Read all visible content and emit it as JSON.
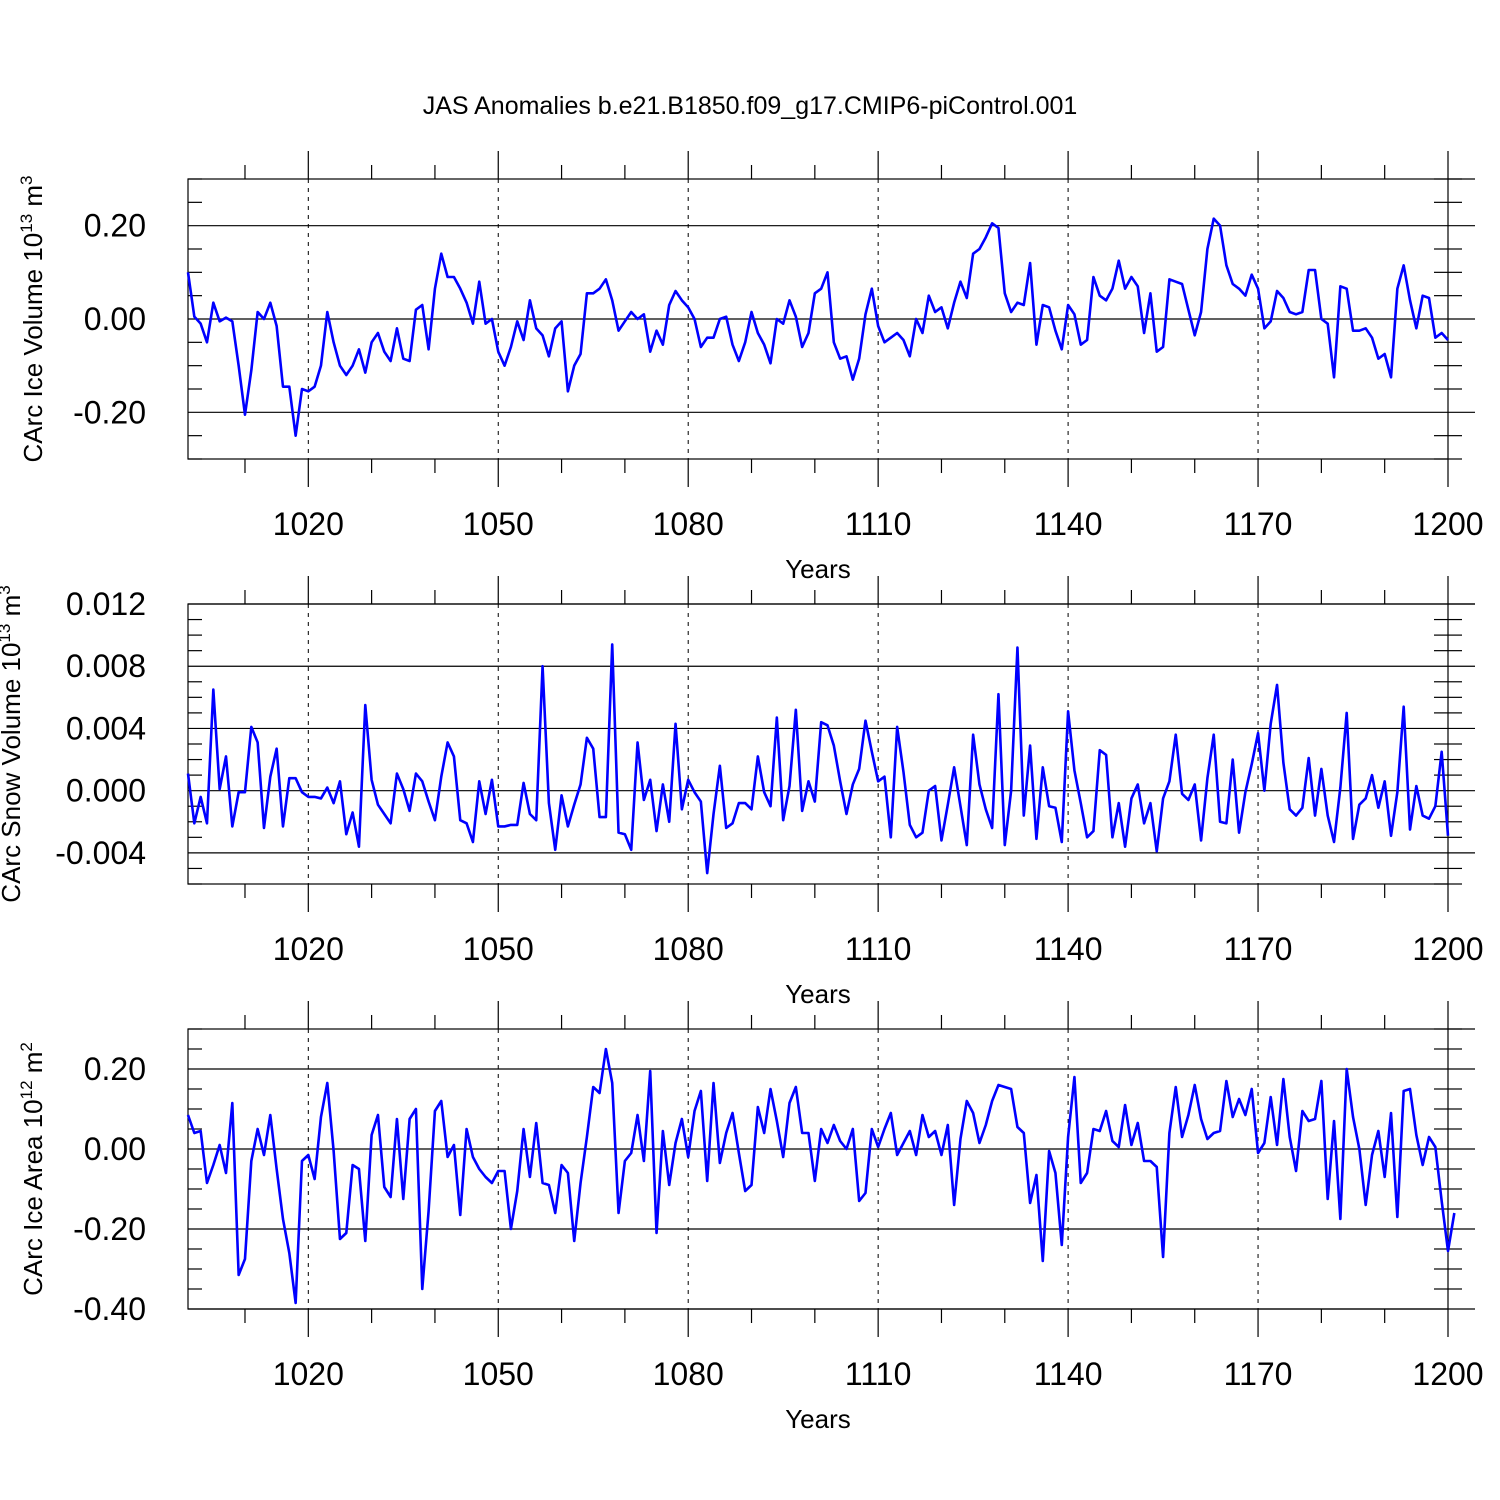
{
  "title": "JAS Anomalies b.e21.B1850.f09_g17.CMIP6-piControl.001",
  "colors": {
    "line": "#0000ff",
    "axis": "#000000",
    "background": "#ffffff"
  },
  "chart_data": [
    {
      "type": "line",
      "name": "ice-volume",
      "ylabel": "CArc Ice Volume 10",
      "ylabel_exp": "13",
      "ylabel_unit": " m",
      "ylabel_unit_exp": "3",
      "xlabel": "Years",
      "xlim": [
        1001,
        1200
      ],
      "ylim": [
        -0.3,
        0.3
      ],
      "xticks": [
        1020,
        1050,
        1080,
        1110,
        1140,
        1170,
        1200
      ],
      "xtick_labels": [
        "1020",
        "1050",
        "1080",
        "1110",
        "1140",
        "1170",
        "1200"
      ],
      "yticks": [
        -0.2,
        0.0,
        0.2
      ],
      "ytick_labels": [
        "-0.20",
        "0.00",
        "0.20"
      ],
      "y_minor_step": 0.05,
      "x_minor_step": 10,
      "x_start": 1001,
      "values": [
        0.1,
        0.005,
        -0.01,
        -0.05,
        0.035,
        -0.005,
        0.003,
        -0.005,
        -0.1,
        -0.205,
        -0.11,
        0.015,
        0.0,
        0.035,
        -0.015,
        -0.145,
        -0.145,
        -0.25,
        -0.15,
        -0.155,
        -0.145,
        -0.1,
        0.015,
        -0.05,
        -0.1,
        -0.12,
        -0.1,
        -0.065,
        -0.115,
        -0.05,
        -0.03,
        -0.07,
        -0.09,
        -0.02,
        -0.085,
        -0.09,
        0.02,
        0.03,
        -0.065,
        0.065,
        0.14,
        0.09,
        0.09,
        0.065,
        0.035,
        -0.01,
        0.08,
        -0.01,
        0.0,
        -0.07,
        -0.1,
        -0.06,
        -0.005,
        -0.045,
        0.04,
        -0.02,
        -0.035,
        -0.08,
        -0.02,
        -0.005,
        -0.155,
        -0.1,
        -0.075,
        0.055,
        0.055,
        0.065,
        0.085,
        0.04,
        -0.025,
        -0.005,
        0.015,
        0.0,
        0.01,
        -0.07,
        -0.025,
        -0.055,
        0.03,
        0.06,
        0.04,
        0.025,
        0.0,
        -0.06,
        -0.04,
        -0.04,
        0.0,
        0.005,
        -0.055,
        -0.09,
        -0.05,
        0.015,
        -0.03,
        -0.055,
        -0.095,
        0.0,
        -0.01,
        0.04,
        0.005,
        -0.06,
        -0.03,
        0.055,
        0.065,
        0.1,
        -0.05,
        -0.085,
        -0.08,
        -0.13,
        -0.085,
        0.01,
        0.065,
        -0.015,
        -0.05,
        -0.04,
        -0.03,
        -0.045,
        -0.08,
        0.0,
        -0.03,
        0.05,
        0.015,
        0.025,
        -0.02,
        0.035,
        0.08,
        0.045,
        0.14,
        0.15,
        0.175,
        0.205,
        0.195,
        0.055,
        0.015,
        0.035,
        0.03,
        0.12,
        -0.055,
        0.03,
        0.025,
        -0.025,
        -0.065,
        0.03,
        0.01,
        -0.055,
        -0.045,
        0.09,
        0.05,
        0.04,
        0.065,
        0.125,
        0.065,
        0.09,
        0.07,
        -0.03,
        0.055,
        -0.07,
        -0.06,
        0.085,
        0.08,
        0.075,
        0.02,
        -0.035,
        0.015,
        0.15,
        0.215,
        0.2,
        0.115,
        0.075,
        0.065,
        0.05,
        0.095,
        0.065,
        -0.02,
        -0.005,
        0.06,
        0.045,
        0.015,
        0.01,
        0.015,
        0.105,
        0.105,
        0.0,
        -0.01,
        -0.125,
        0.07,
        0.065,
        -0.025,
        -0.025,
        -0.02,
        -0.04,
        -0.085,
        -0.075,
        -0.125,
        0.065,
        0.115,
        0.04,
        -0.02,
        0.05,
        0.045,
        -0.04,
        -0.03,
        -0.045
      ]
    },
    {
      "type": "line",
      "name": "snow-volume",
      "ylabel": "CArc Snow Volume 10",
      "ylabel_exp": "13",
      "ylabel_unit": " m",
      "ylabel_unit_exp": "3",
      "xlabel": "Years",
      "xlim": [
        1001,
        1200
      ],
      "ylim": [
        -0.006,
        0.012
      ],
      "xticks": [
        1020,
        1050,
        1080,
        1110,
        1140,
        1170,
        1200
      ],
      "xtick_labels": [
        "1020",
        "1050",
        "1080",
        "1110",
        "1140",
        "1170",
        "1200"
      ],
      "yticks": [
        -0.004,
        0.0,
        0.004,
        0.008,
        0.012
      ],
      "ytick_labels": [
        "-0.004",
        "0.000",
        "0.004",
        "0.008",
        "0.012"
      ],
      "y_minor_step": 0.001,
      "x_minor_step": 10,
      "x_start": 1001,
      "values": [
        0.0011,
        -0.0021,
        -0.0004,
        -0.0021,
        0.0065,
        0.0001,
        0.0022,
        -0.0023,
        -0.0001,
        -0.0001,
        0.0041,
        0.0031,
        -0.0024,
        0.0009,
        0.0027,
        -0.0023,
        0.0008,
        0.0008,
        -0.0001,
        -0.0004,
        -0.0004,
        -0.0005,
        0.0002,
        -0.0008,
        0.0006,
        -0.0028,
        -0.0014,
        -0.0036,
        0.0055,
        0.0007,
        -0.0009,
        -0.0015,
        -0.0021,
        0.0011,
        0.0001,
        -0.0013,
        0.0011,
        0.0006,
        -0.0007,
        -0.0019,
        0.0009,
        0.0031,
        0.0022,
        -0.0019,
        -0.0021,
        -0.0033,
        0.0006,
        -0.0015,
        0.0007,
        -0.0023,
        -0.0023,
        -0.0022,
        -0.0022,
        0.0005,
        -0.0015,
        -0.0019,
        0.008,
        -0.0008,
        -0.0038,
        -0.0003,
        -0.0023,
        -0.0009,
        0.0004,
        0.0034,
        0.0027,
        -0.0017,
        -0.0017,
        0.0094,
        -0.0027,
        -0.0028,
        -0.0038,
        0.0031,
        -0.0006,
        0.0007,
        -0.0026,
        0.0004,
        -0.002,
        0.0043,
        -0.0012,
        0.0007,
        -0.0001,
        -0.0007,
        -0.0053,
        -0.0015,
        0.0016,
        -0.0024,
        -0.0021,
        -0.0008,
        -0.0008,
        -0.0012,
        0.0022,
        -0.0001,
        -0.001,
        0.0047,
        -0.0019,
        0.0003,
        0.0052,
        -0.0013,
        0.0006,
        -0.0007,
        0.0044,
        0.0042,
        0.0029,
        0.0006,
        -0.0015,
        0.0004,
        0.0014,
        0.0045,
        0.0025,
        0.0006,
        0.0009,
        -0.003,
        0.0041,
        0.0012,
        -0.0022,
        -0.003,
        -0.0027,
        0.0,
        0.0003,
        -0.0032,
        -0.0009,
        0.0015,
        -0.001,
        -0.0035,
        0.0036,
        0.0004,
        -0.0012,
        -0.0024,
        0.0062,
        -0.0035,
        0.0,
        0.0092,
        -0.0016,
        0.0029,
        -0.0031,
        0.0015,
        -0.001,
        -0.0011,
        -0.0033,
        0.0051,
        0.0013,
        -0.0008,
        -0.003,
        -0.0026,
        0.0026,
        0.0023,
        -0.003,
        -0.0008,
        -0.0036,
        -0.0005,
        0.0004,
        -0.0021,
        -0.0008,
        -0.0039,
        -0.0005,
        0.0006,
        0.0036,
        -0.0002,
        -0.0006,
        0.0004,
        -0.0032,
        0.0008,
        0.0036,
        -0.002,
        -0.0021,
        0.002,
        -0.0027,
        -0.0001,
        0.0017,
        0.0037,
        0.0,
        0.0043,
        0.0068,
        0.0018,
        -0.0012,
        -0.0016,
        -0.0011,
        0.0021,
        -0.0016,
        0.0014,
        -0.0016,
        -0.0033,
        0.0002,
        0.005,
        -0.0031,
        -0.0009,
        -0.0005,
        0.001,
        -0.0011,
        0.0006,
        -0.0029,
        -0.0001,
        0.0054,
        -0.0025,
        0.0003,
        -0.0016,
        -0.0018,
        -0.001,
        0.0025,
        -0.0029
      ]
    },
    {
      "type": "line",
      "name": "ice-area",
      "ylabel": "CArc Ice Area 10",
      "ylabel_exp": "12",
      "ylabel_unit": " m",
      "ylabel_unit_exp": "2",
      "xlabel": "Years",
      "xlim": [
        1001,
        1200
      ],
      "ylim": [
        -0.4,
        0.3
      ],
      "xticks": [
        1020,
        1050,
        1080,
        1110,
        1140,
        1170,
        1200
      ],
      "xtick_labels": [
        "1020",
        "1050",
        "1080",
        "1110",
        "1140",
        "1170",
        "1200"
      ],
      "yticks": [
        -0.4,
        -0.2,
        0.0,
        0.2
      ],
      "ytick_labels": [
        "-0.40",
        "-0.20",
        "0.00",
        "0.20"
      ],
      "y_minor_step": 0.05,
      "x_minor_step": 10,
      "x_start": 1001,
      "values": [
        0.085,
        0.04,
        0.045,
        -0.085,
        -0.04,
        0.01,
        -0.06,
        0.115,
        -0.315,
        -0.275,
        -0.03,
        0.05,
        -0.015,
        0.085,
        -0.05,
        -0.175,
        -0.26,
        -0.385,
        -0.03,
        -0.015,
        -0.075,
        0.08,
        0.165,
        -0.005,
        -0.225,
        -0.21,
        -0.04,
        -0.05,
        -0.23,
        0.035,
        0.085,
        -0.095,
        -0.12,
        0.075,
        -0.125,
        0.075,
        0.1,
        -0.35,
        -0.155,
        0.095,
        0.12,
        -0.02,
        0.01,
        -0.165,
        0.05,
        -0.02,
        -0.05,
        -0.07,
        -0.085,
        -0.055,
        -0.055,
        -0.2,
        -0.105,
        0.05,
        -0.07,
        0.065,
        -0.085,
        -0.09,
        -0.16,
        -0.04,
        -0.06,
        -0.23,
        -0.085,
        0.03,
        0.155,
        0.14,
        0.25,
        0.165,
        -0.16,
        -0.03,
        -0.01,
        0.085,
        -0.03,
        0.195,
        -0.21,
        0.045,
        -0.09,
        0.015,
        0.075,
        -0.02,
        0.095,
        0.145,
        -0.08,
        0.165,
        -0.035,
        0.04,
        0.09,
        -0.01,
        -0.105,
        -0.09,
        0.105,
        0.04,
        0.15,
        0.07,
        -0.02,
        0.115,
        0.155,
        0.04,
        0.04,
        -0.08,
        0.05,
        0.015,
        0.06,
        0.02,
        0.0,
        0.05,
        -0.13,
        -0.11,
        0.05,
        0.005,
        0.05,
        0.09,
        -0.015,
        0.015,
        0.045,
        -0.015,
        0.085,
        0.03,
        0.045,
        -0.015,
        0.06,
        -0.14,
        0.025,
        0.12,
        0.09,
        0.015,
        0.06,
        0.12,
        0.16,
        0.155,
        0.15,
        0.055,
        0.04,
        -0.135,
        -0.065,
        -0.28,
        -0.005,
        -0.06,
        -0.24,
        0.03,
        0.18,
        -0.085,
        -0.06,
        0.05,
        0.045,
        0.095,
        0.02,
        0.005,
        0.11,
        0.01,
        0.065,
        -0.03,
        -0.03,
        -0.045,
        -0.27,
        0.04,
        0.155,
        0.03,
        0.085,
        0.16,
        0.075,
        0.025,
        0.04,
        0.045,
        0.17,
        0.08,
        0.125,
        0.085,
        0.15,
        -0.01,
        0.015,
        0.13,
        0.01,
        0.175,
        0.03,
        -0.055,
        0.095,
        0.07,
        0.075,
        0.17,
        -0.125,
        0.07,
        -0.175,
        0.2,
        0.08,
        0.0,
        -0.14,
        -0.015,
        0.045,
        -0.07,
        0.09,
        -0.17,
        0.145,
        0.15,
        0.035,
        -0.04,
        0.03,
        0.005,
        -0.13,
        -0.255,
        -0.16
      ]
    }
  ]
}
